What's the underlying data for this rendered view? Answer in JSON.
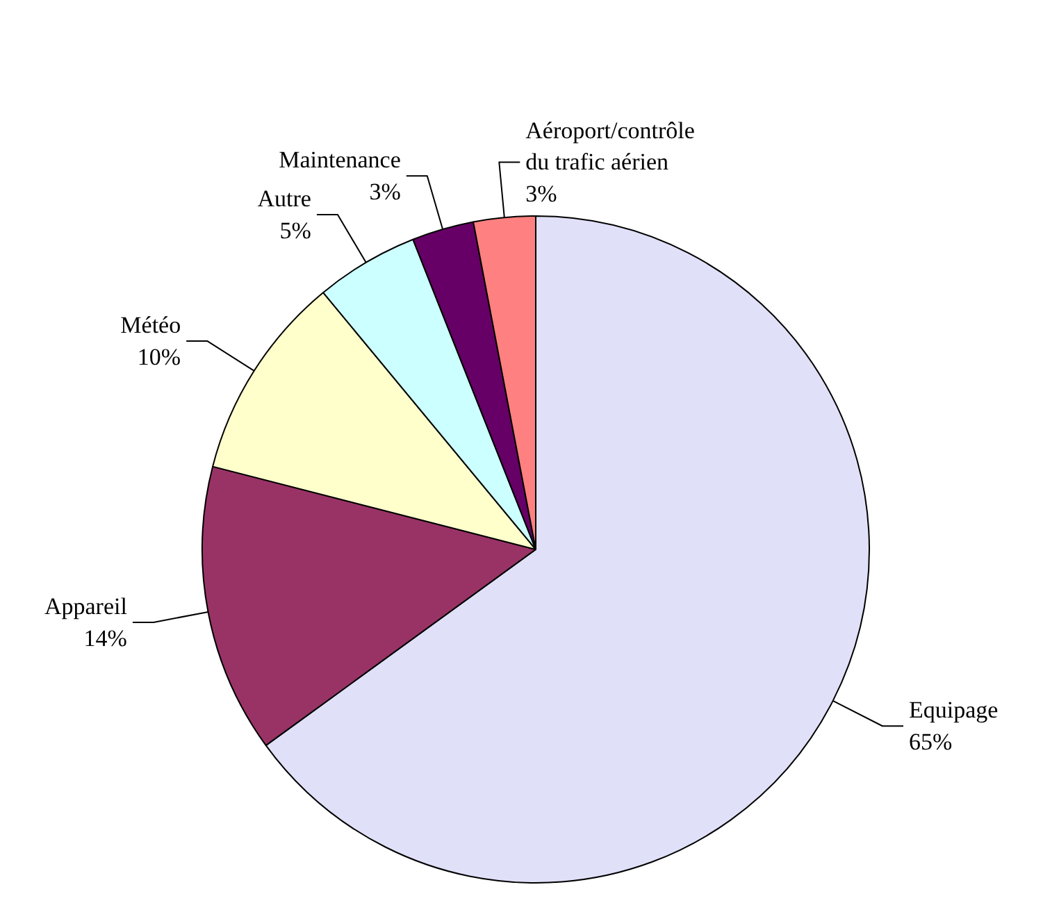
{
  "chart_data": {
    "type": "pie",
    "categories": [
      "Equipage",
      "Appareil",
      "Météo",
      "Autre",
      "Maintenance",
      "Aéroport/contrôle du trafic aérien"
    ],
    "values": [
      65,
      14,
      10,
      5,
      3,
      3
    ],
    "colors": [
      "#e0e0f8",
      "#993366",
      "#ffffcc",
      "#ccffff",
      "#660066",
      "#ff8080"
    ],
    "value_labels": [
      "65%",
      "14%",
      "10%",
      "5%",
      "3%",
      "3%"
    ]
  }
}
